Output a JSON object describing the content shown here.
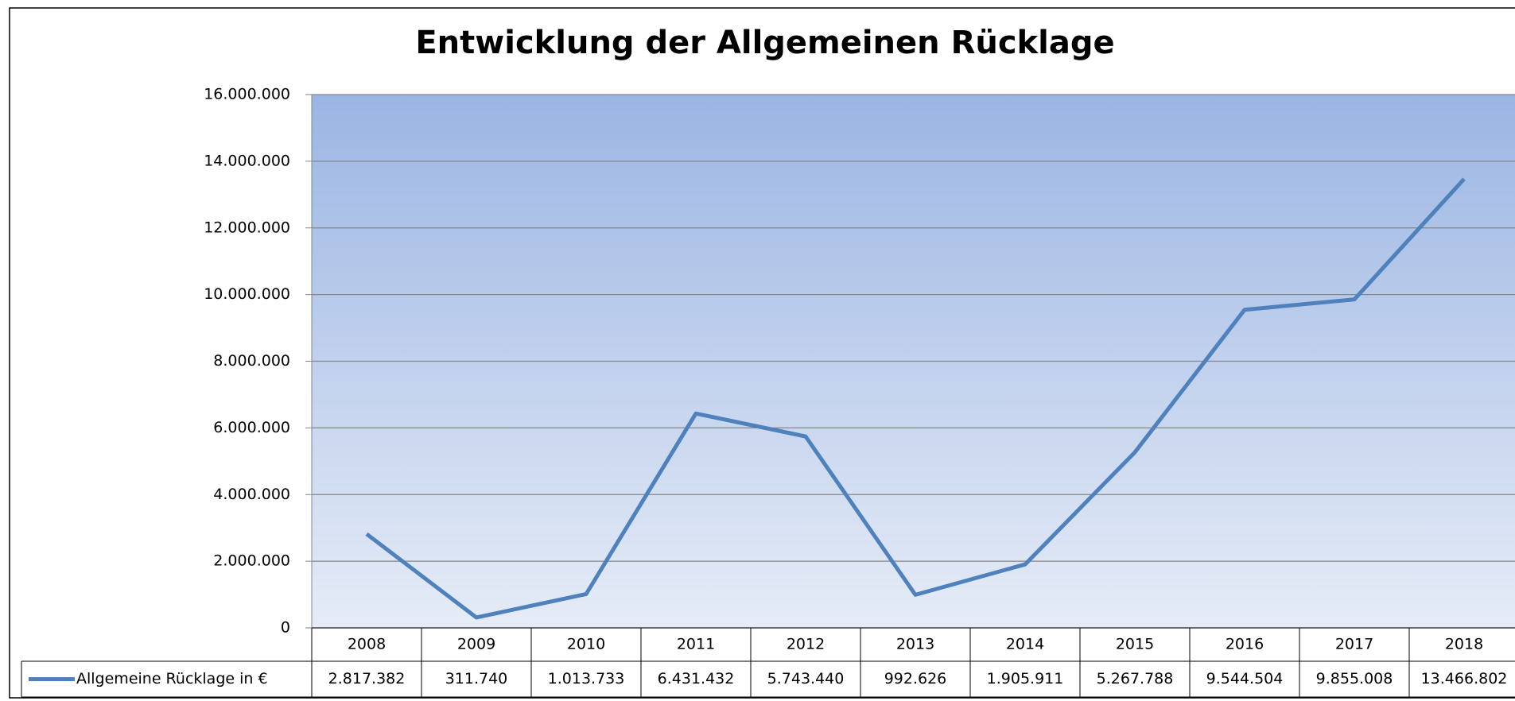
{
  "chart_data": {
    "type": "line",
    "title": "Entwicklung der Allgemeinen Rücklage",
    "categories": [
      "2008",
      "2009",
      "2010",
      "2011",
      "2012",
      "2013",
      "2014",
      "2015",
      "2016",
      "2017",
      "2018"
    ],
    "series": [
      {
        "name": "Allgemeine Rücklage in €",
        "color": "#4f81bd",
        "values": [
          2817382,
          311740,
          1013733,
          6431432,
          5743440,
          992626,
          1905911,
          5267788,
          9544504,
          9855008,
          13466802
        ],
        "value_labels": [
          "2.817.382",
          "311.740",
          "1.013.733",
          "6.431.432",
          "5.743.440",
          "992.626",
          "1.905.911",
          "5.267.788",
          "9.544.504",
          "9.855.008",
          "13.466.802"
        ]
      }
    ],
    "ylim": [
      0,
      16000000
    ],
    "yticks": [
      {
        "value": 0,
        "label": "0"
      },
      {
        "value": 2000000,
        "label": "2.000.000"
      },
      {
        "value": 4000000,
        "label": "4.000.000"
      },
      {
        "value": 6000000,
        "label": "6.000.000"
      },
      {
        "value": 8000000,
        "label": "8.000.000"
      },
      {
        "value": 10000000,
        "label": "10.000.000"
      },
      {
        "value": 12000000,
        "label": "12.000.000"
      },
      {
        "value": 14000000,
        "label": "14.000.000"
      },
      {
        "value": 16000000,
        "label": "16.000.000"
      }
    ],
    "grid": true,
    "data_table": true
  }
}
